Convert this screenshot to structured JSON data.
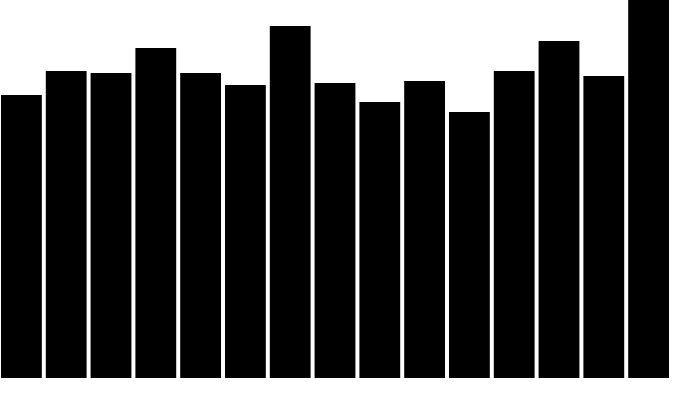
{
  "chart_data": {
    "type": "bar",
    "series": [
      {
        "values": [
          283,
          307,
          305,
          330,
          305,
          293,
          352,
          295,
          276,
          297,
          266,
          307,
          337,
          302,
          378
        ]
      }
    ],
    "ylim": [
      0,
      378
    ],
    "grid": false,
    "legend": "none",
    "bar_color": "#000000",
    "background": "#ffffff"
  }
}
